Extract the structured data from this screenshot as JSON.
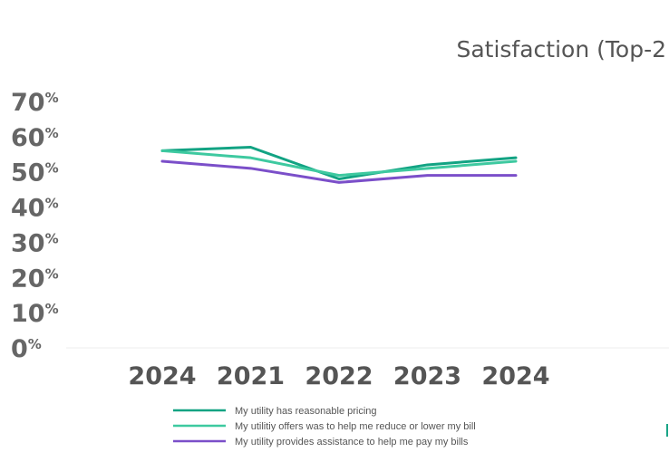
{
  "chart_data": {
    "type": "line",
    "title": "Satisfaction (Top-2",
    "x": [
      "2024",
      "2021",
      "2022",
      "2023",
      "2024"
    ],
    "yticks": [
      "0",
      "10",
      "20",
      "30",
      "40",
      "50",
      "60",
      "70"
    ],
    "ytick_unit": "%",
    "ylim": [
      0,
      70
    ],
    "grid": false,
    "legend_position": "bottom",
    "series": [
      {
        "name": "My utility has reasonable pricing",
        "color": "#12a383",
        "values": [
          56,
          57,
          48,
          52,
          54
        ]
      },
      {
        "name": "My utilitiy offers was to help me reduce or lower my bill",
        "color": "#3ec9a0",
        "values": [
          56,
          54,
          49,
          51,
          53
        ]
      },
      {
        "name": "My utility provides assistance to help me pay my bills",
        "color": "#7b4fc9",
        "values": [
          53,
          51,
          47,
          49,
          49
        ]
      }
    ]
  }
}
